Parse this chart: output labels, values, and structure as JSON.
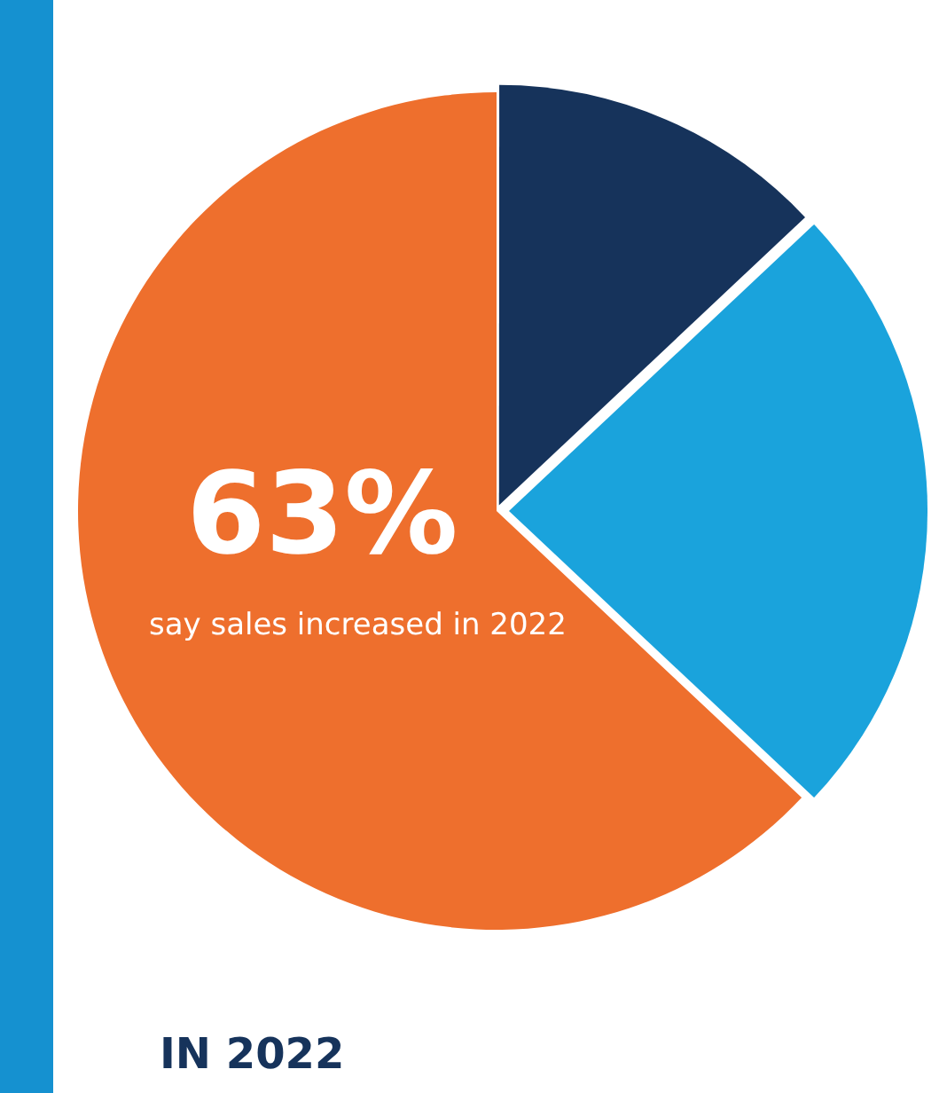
{
  "chart_data": {
    "type": "pie",
    "categories": [
      null,
      null,
      null
    ],
    "values": [
      13,
      24,
      63
    ],
    "colors": [
      "#16335b",
      "#1aa3dc",
      "#ee6f2d"
    ],
    "value_labels": [
      null,
      null,
      "63%"
    ],
    "annotations": [
      "say sales increased in 2022",
      "IN 2022"
    ],
    "legend": false
  }
}
